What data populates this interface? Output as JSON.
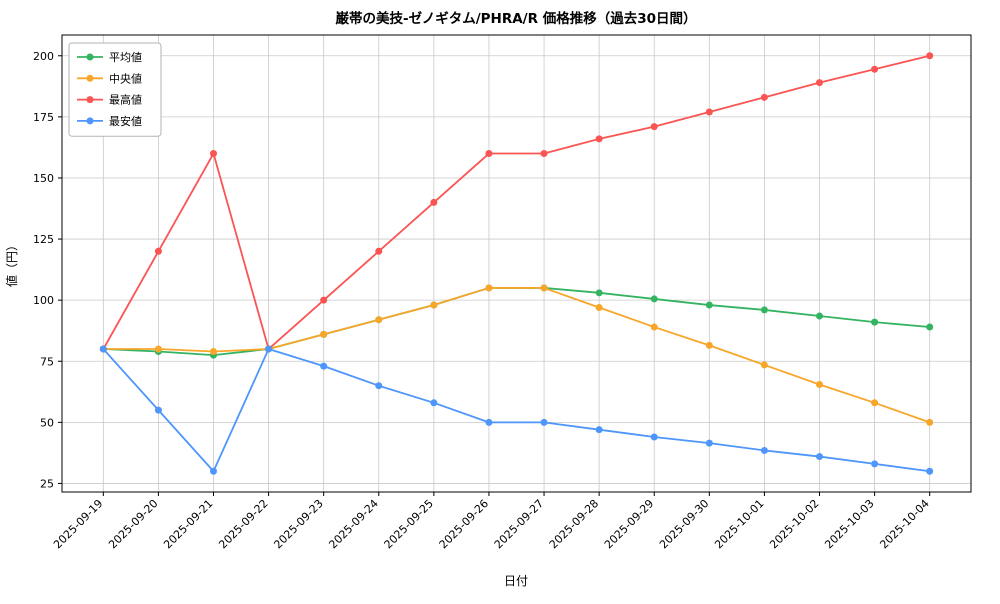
{
  "chart_data": {
    "type": "line",
    "title": "巌帯の美技-ゼノギタム/PHRA/R 価格推移（過去30日間）",
    "xlabel": "日付",
    "ylabel": "値（円）",
    "x": [
      "2025-09-19",
      "2025-09-20",
      "2025-09-21",
      "2025-09-22",
      "2025-09-23",
      "2025-09-24",
      "2025-09-25",
      "2025-09-26",
      "2025-09-27",
      "2025-09-28",
      "2025-09-29",
      "2025-09-30",
      "2025-10-01",
      "2025-10-02",
      "2025-10-03",
      "2025-10-04"
    ],
    "yticks": [
      25,
      50,
      75,
      100,
      125,
      150,
      175,
      200
    ],
    "ylim": [
      21.5,
      208.5
    ],
    "grid": true,
    "legend_position": "top-left",
    "series": [
      {
        "name": "平均値",
        "color": "#34b361",
        "values": [
          80,
          79,
          77.5,
          80,
          86,
          92,
          98,
          105,
          105,
          103,
          100.5,
          98,
          96,
          93.5,
          91,
          89
        ]
      },
      {
        "name": "中央値",
        "color": "#f8a62a",
        "values": [
          80,
          80,
          79,
          80,
          86,
          92,
          98,
          105,
          105,
          97,
          89,
          81.5,
          73.5,
          65.5,
          58,
          50
        ]
      },
      {
        "name": "最高値",
        "color": "#fa5453",
        "values": [
          80,
          120,
          160,
          80,
          100,
          120,
          140,
          160,
          160,
          166,
          171,
          177,
          183,
          189,
          194.5,
          200
        ]
      },
      {
        "name": "最安値",
        "color": "#4e96fb",
        "values": [
          80,
          55,
          30,
          80,
          73,
          65,
          58,
          50,
          50,
          47,
          44,
          41.5,
          38.5,
          36,
          33,
          30
        ]
      }
    ],
    "grid_color": "#c9c9c9",
    "legend_border_color": "#b3b3b3"
  }
}
